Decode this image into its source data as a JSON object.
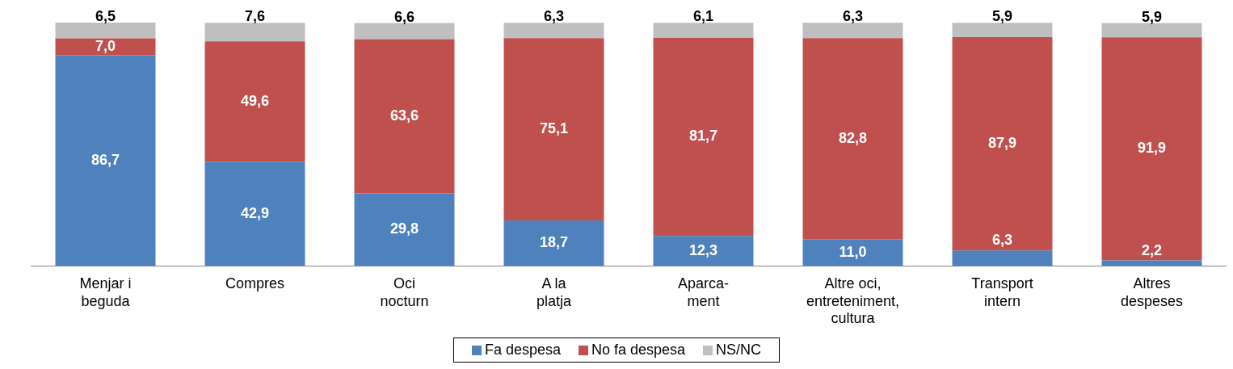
{
  "chart_data": {
    "type": "bar",
    "stacked": true,
    "tick_labels": "x",
    "grid": false,
    "legend": "bottom",
    "categories": [
      "Menjar i\nbeguda",
      "Compres",
      "Oci\nnocturn",
      "A la\nplatja",
      "Aparca-\nment",
      "Altre oci,\nentreteniment,\ncultura",
      "Transport\nintern",
      "Altres\ndespeses"
    ],
    "series": [
      {
        "name": "Fa despesa",
        "color": "#4f81bd",
        "values": [
          86.7,
          42.9,
          29.8,
          18.7,
          12.3,
          11.0,
          6.3,
          2.2
        ],
        "value_labels": [
          "86,7",
          "42,9",
          "29,8",
          "18,7",
          "12,3",
          "11,0",
          "6,3",
          "2,2"
        ]
      },
      {
        "name": "No fa despesa",
        "color": "#c0504d",
        "values": [
          7.0,
          49.6,
          63.6,
          75.1,
          81.7,
          82.8,
          87.9,
          91.9
        ],
        "value_labels": [
          "7,0",
          "49,6",
          "63,6",
          "75,1",
          "81,7",
          "82,8",
          "87,9",
          "91,9"
        ]
      },
      {
        "name": "NS/NC",
        "color": "#bfbfbf",
        "values": [
          6.5,
          7.6,
          6.6,
          6.3,
          6.1,
          6.3,
          5.9,
          5.9
        ],
        "value_labels": [
          "6,5",
          "7,6",
          "6,6",
          "6,3",
          "6,1",
          "6,3",
          "5,9",
          "5,9"
        ]
      }
    ]
  }
}
